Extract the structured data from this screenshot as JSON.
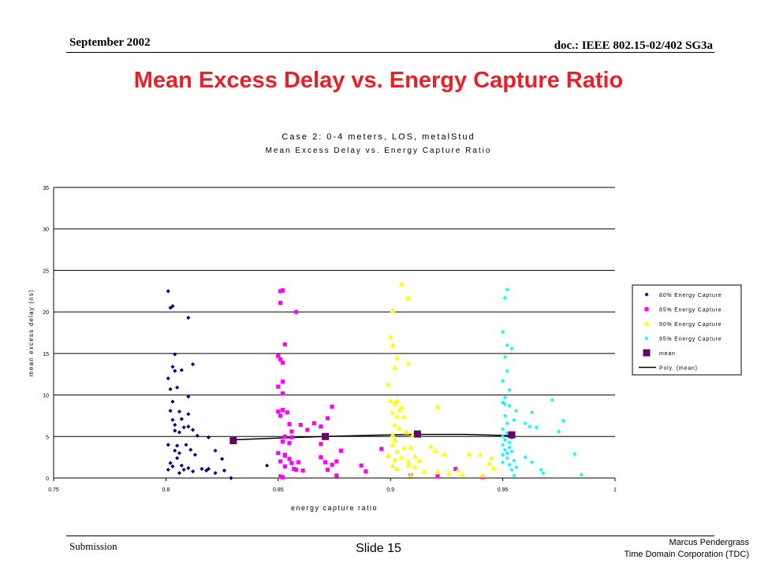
{
  "header": {
    "date": "September 2002",
    "doc": "doc.: IEEE 802.15-02/402 SG3a"
  },
  "slide_title": "Mean Excess Delay vs. Energy Capture Ratio",
  "footer": {
    "left": "Submission",
    "center": "Slide 15",
    "author": "Marcus Pendergrass",
    "org": "Time Domain Corporation (TDC)"
  },
  "chart_data": {
    "type": "scatter",
    "title": "Case 2:  0-4 meters, LOS, metalStud",
    "subtitle": "Mean Excess Delay vs. Energy Capture Ratio",
    "xlabel": "energy capture ratio",
    "ylabel": "mean excess delay (ns)",
    "xlim": [
      0.75,
      1
    ],
    "ylim": [
      0,
      35
    ],
    "x_ticks": [
      "0.75",
      "0.8",
      "0.85",
      "0.9",
      "0.95",
      "1"
    ],
    "y_ticks": [
      "0",
      "5",
      "10",
      "15",
      "20",
      "25",
      "30",
      "35"
    ],
    "grid": "horizontal",
    "legend_position": "right",
    "series": [
      {
        "name": "80% Energy Capture",
        "marker": "diamond",
        "color": "#000080",
        "points": [
          [
            0.801,
            22.5
          ],
          [
            0.802,
            20.5
          ],
          [
            0.803,
            20.7
          ],
          [
            0.81,
            19.3
          ],
          [
            0.812,
            13.7
          ],
          [
            0.803,
            13.4
          ],
          [
            0.804,
            12.9
          ],
          [
            0.807,
            13.0
          ],
          [
            0.801,
            12.0
          ],
          [
            0.802,
            10.7
          ],
          [
            0.805,
            10.9
          ],
          [
            0.81,
            9.8
          ],
          [
            0.803,
            9.2
          ],
          [
            0.802,
            8.1
          ],
          [
            0.806,
            8.0
          ],
          [
            0.81,
            7.7
          ],
          [
            0.803,
            7.0
          ],
          [
            0.807,
            7.1
          ],
          [
            0.804,
            6.4
          ],
          [
            0.808,
            6.1
          ],
          [
            0.81,
            6.2
          ],
          [
            0.812,
            5.8
          ],
          [
            0.804,
            5.7
          ],
          [
            0.806,
            5.5
          ],
          [
            0.814,
            5.1
          ],
          [
            0.819,
            4.9
          ],
          [
            0.801,
            4.0
          ],
          [
            0.805,
            3.9
          ],
          [
            0.809,
            4.0
          ],
          [
            0.804,
            3.3
          ],
          [
            0.806,
            3.0
          ],
          [
            0.811,
            3.4
          ],
          [
            0.813,
            2.8
          ],
          [
            0.805,
            2.4
          ],
          [
            0.802,
            1.8
          ],
          [
            0.807,
            1.5
          ],
          [
            0.81,
            1.2
          ],
          [
            0.816,
            1.1
          ],
          [
            0.801,
            1.0
          ],
          [
            0.803,
            1.4
          ],
          [
            0.808,
            1.0
          ],
          [
            0.812,
            0.8
          ],
          [
            0.819,
            1.1
          ],
          [
            0.822,
            0.6
          ],
          [
            0.825,
            2.3
          ],
          [
            0.826,
            0.9
          ],
          [
            0.818,
            0.9
          ],
          [
            0.806,
            0.6
          ],
          [
            0.829,
            0.0
          ],
          [
            0.845,
            1.5
          ],
          [
            0.804,
            14.9
          ],
          [
            0.822,
            3.3
          ]
        ]
      },
      {
        "name": "85% Energy Capture",
        "marker": "square",
        "color": "#ff00ff",
        "points": [
          [
            0.852,
            22.6
          ],
          [
            0.851,
            22.5
          ],
          [
            0.851,
            21.1
          ],
          [
            0.858,
            20.0
          ],
          [
            0.853,
            16.1
          ],
          [
            0.85,
            14.7
          ],
          [
            0.851,
            14.3
          ],
          [
            0.852,
            13.9
          ],
          [
            0.852,
            11.6
          ],
          [
            0.85,
            11.0
          ],
          [
            0.852,
            10.2
          ],
          [
            0.85,
            8.0
          ],
          [
            0.852,
            8.2
          ],
          [
            0.854,
            7.9
          ],
          [
            0.851,
            7.5
          ],
          [
            0.855,
            6.5
          ],
          [
            0.86,
            6.4
          ],
          [
            0.863,
            5.8
          ],
          [
            0.866,
            6.6
          ],
          [
            0.869,
            6.2
          ],
          [
            0.872,
            7.2
          ],
          [
            0.874,
            8.6
          ],
          [
            0.856,
            5.6
          ],
          [
            0.853,
            5.0
          ],
          [
            0.856,
            4.9
          ],
          [
            0.852,
            4.4
          ],
          [
            0.855,
            4.2
          ],
          [
            0.869,
            4.1
          ],
          [
            0.878,
            3.3
          ],
          [
            0.85,
            3.0
          ],
          [
            0.853,
            2.7
          ],
          [
            0.855,
            2.3
          ],
          [
            0.851,
            2.0
          ],
          [
            0.856,
            1.8
          ],
          [
            0.859,
            1.9
          ],
          [
            0.869,
            2.5
          ],
          [
            0.871,
            1.9
          ],
          [
            0.874,
            1.6
          ],
          [
            0.876,
            2.0
          ],
          [
            0.853,
            1.4
          ],
          [
            0.858,
            1.0
          ],
          [
            0.861,
            0.9
          ],
          [
            0.872,
            1.0
          ],
          [
            0.876,
            0.3
          ],
          [
            0.887,
            1.5
          ],
          [
            0.889,
            0.8
          ],
          [
            0.851,
            0.2
          ],
          [
            0.852,
            0.1
          ],
          [
            0.896,
            3.5
          ],
          [
            0.909,
            0.3
          ],
          [
            0.921,
            0.2
          ],
          [
            0.929,
            1.1
          ],
          [
            0.941,
            0.1
          ],
          [
            0.853,
            2.8
          ],
          [
            0.857,
            1.1
          ]
        ]
      },
      {
        "name": "90% Energy Capture",
        "marker": "triangle",
        "color": "#ffff00",
        "points": [
          [
            0.905,
            23.4
          ],
          [
            0.908,
            21.7
          ],
          [
            0.901,
            20.2
          ],
          [
            0.9,
            17.0
          ],
          [
            0.901,
            16.0
          ],
          [
            0.903,
            14.5
          ],
          [
            0.902,
            13.3
          ],
          [
            0.908,
            13.8
          ],
          [
            0.899,
            11.3
          ],
          [
            0.9,
            9.3
          ],
          [
            0.903,
            9.3
          ],
          [
            0.905,
            8.5
          ],
          [
            0.901,
            7.9
          ],
          [
            0.903,
            7.4
          ],
          [
            0.906,
            7.4
          ],
          [
            0.902,
            6.4
          ],
          [
            0.904,
            6.0
          ],
          [
            0.907,
            5.6
          ],
          [
            0.901,
            5.2
          ],
          [
            0.91,
            5.2
          ],
          [
            0.921,
            8.6
          ],
          [
            0.902,
            4.6
          ],
          [
            0.901,
            4.0
          ],
          [
            0.906,
            3.6
          ],
          [
            0.909,
            3.7
          ],
          [
            0.903,
            3.2
          ],
          [
            0.899,
            2.7
          ],
          [
            0.902,
            2.2
          ],
          [
            0.905,
            2.5
          ],
          [
            0.908,
            2.0
          ],
          [
            0.911,
            2.6
          ],
          [
            0.913,
            2.1
          ],
          [
            0.918,
            3.8
          ],
          [
            0.92,
            3.3
          ],
          [
            0.924,
            2.9
          ],
          [
            0.935,
            2.9
          ],
          [
            0.94,
            2.8
          ],
          [
            0.945,
            2.4
          ],
          [
            0.901,
            1.5
          ],
          [
            0.903,
            1.1
          ],
          [
            0.908,
            1.5
          ],
          [
            0.911,
            1.3
          ],
          [
            0.915,
            0.8
          ],
          [
            0.921,
            0.8
          ],
          [
            0.926,
            0.6
          ],
          [
            0.93,
            0.9
          ],
          [
            0.932,
            0.4
          ],
          [
            0.941,
            0.3
          ],
          [
            0.944,
            1.7
          ],
          [
            0.946,
            1.2
          ],
          [
            0.909,
            0.3
          ],
          [
            0.902,
            9.0
          ],
          [
            0.904,
            8.2
          ],
          [
            0.907,
            5.5
          ]
        ]
      },
      {
        "name": "95% Energy Capture",
        "marker": "circle",
        "color": "#00ffff",
        "points": [
          [
            0.952,
            22.7
          ],
          [
            0.951,
            21.7
          ],
          [
            0.95,
            17.6
          ],
          [
            0.952,
            16.0
          ],
          [
            0.954,
            15.6
          ],
          [
            0.951,
            14.6
          ],
          [
            0.952,
            12.9
          ],
          [
            0.95,
            11.7
          ],
          [
            0.953,
            10.6
          ],
          [
            0.951,
            9.7
          ],
          [
            0.95,
            9.1
          ],
          [
            0.953,
            8.7
          ],
          [
            0.956,
            8.1
          ],
          [
            0.951,
            7.5
          ],
          [
            0.955,
            7.0
          ],
          [
            0.952,
            6.6
          ],
          [
            0.96,
            6.6
          ],
          [
            0.962,
            6.2
          ],
          [
            0.965,
            6.1
          ],
          [
            0.963,
            7.9
          ],
          [
            0.972,
            9.4
          ],
          [
            0.975,
            5.6
          ],
          [
            0.977,
            6.9
          ],
          [
            0.95,
            5.9
          ],
          [
            0.952,
            5.4
          ],
          [
            0.95,
            5.0
          ],
          [
            0.951,
            4.6
          ],
          [
            0.953,
            4.3
          ],
          [
            0.95,
            4.0
          ],
          [
            0.953,
            3.7
          ],
          [
            0.951,
            3.4
          ],
          [
            0.954,
            3.2
          ],
          [
            0.95,
            2.8
          ],
          [
            0.952,
            2.4
          ],
          [
            0.955,
            2.1
          ],
          [
            0.95,
            1.9
          ],
          [
            0.953,
            1.6
          ],
          [
            0.956,
            1.3
          ],
          [
            0.954,
            1.0
          ],
          [
            0.96,
            2.5
          ],
          [
            0.963,
            1.9
          ],
          [
            0.967,
            1.0
          ],
          [
            0.968,
            0.6
          ],
          [
            0.982,
            2.9
          ],
          [
            0.985,
            0.4
          ],
          [
            0.955,
            0.3
          ],
          [
            0.951,
            8.9
          ],
          [
            0.954,
            4.8
          ],
          [
            0.952,
            3.0
          ]
        ]
      },
      {
        "name": "mean",
        "marker": "square",
        "color": "#660066",
        "points": [
          [
            0.83,
            4.5
          ],
          [
            0.871,
            5.0
          ],
          [
            0.912,
            5.3
          ],
          [
            0.954,
            5.2
          ]
        ]
      }
    ],
    "trendline": {
      "name": "Poly. (mean)",
      "color": "#000000",
      "points": [
        [
          0.83,
          4.6
        ],
        [
          0.85,
          4.82
        ],
        [
          0.871,
          5.0
        ],
        [
          0.891,
          5.15
        ],
        [
          0.912,
          5.25
        ],
        [
          0.933,
          5.25
        ],
        [
          0.954,
          5.1
        ]
      ]
    }
  }
}
